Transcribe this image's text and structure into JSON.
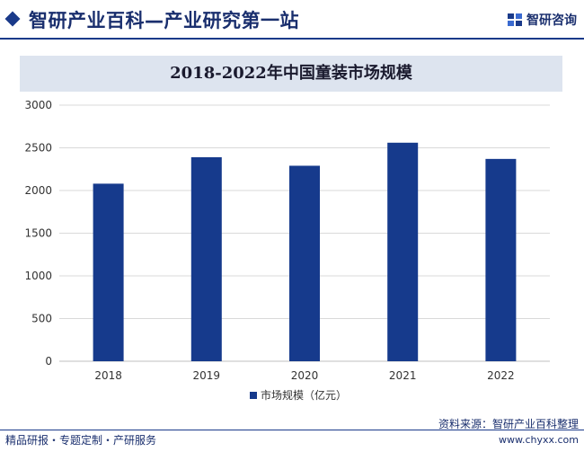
{
  "header": {
    "title": "智研产业百科—产业研究第一站",
    "brand": "智研咨询",
    "brand_icon": "zhiyan-logo-icon"
  },
  "chart_data": {
    "type": "bar",
    "title": "2018-2022年中国童装市场规模",
    "categories": [
      "2018",
      "2019",
      "2020",
      "2021",
      "2022"
    ],
    "series": [
      {
        "name": "市场规模（亿元）",
        "values": [
          2080,
          2390,
          2290,
          2560,
          2370
        ]
      }
    ],
    "ylim": [
      0,
      3000
    ],
    "yticks": [
      0,
      500,
      1000,
      1500,
      2000,
      2500,
      3000
    ],
    "grid": true,
    "legend": "bottom",
    "colors": {
      "bar": "#163a8c",
      "grid": "#d9d9d9",
      "axis": "#bfbfbf"
    }
  },
  "footer": {
    "left": "精品研报・专题定制・产研服务",
    "source": "资料来源：智研产业百科整理",
    "url": "www.chyxx.com"
  }
}
